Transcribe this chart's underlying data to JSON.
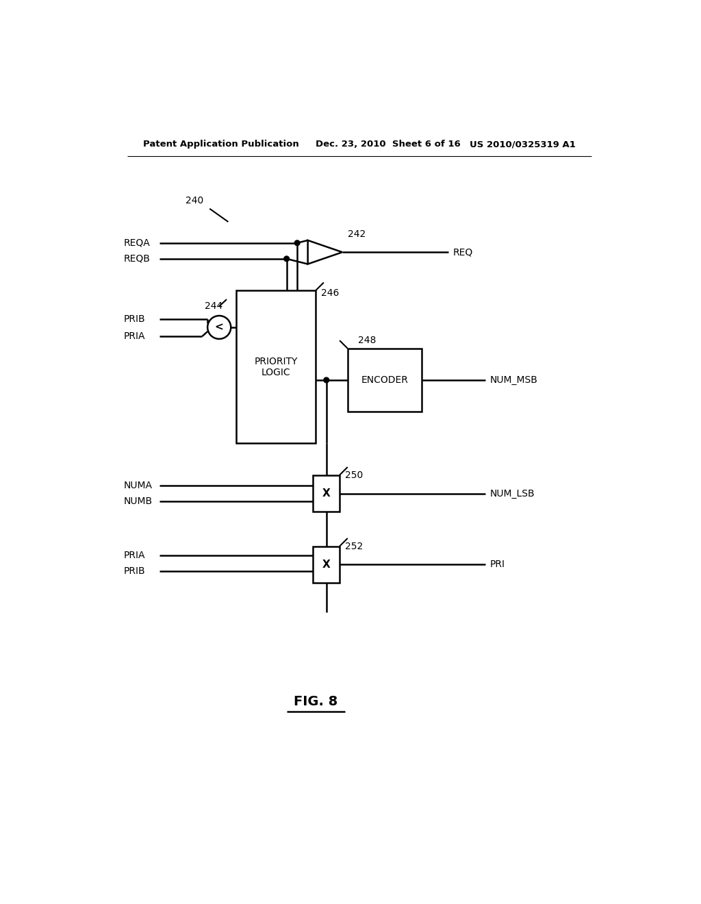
{
  "bg_color": "#ffffff",
  "text_color": "#000000",
  "header_left": "Patent Application Publication",
  "header_mid": "Dec. 23, 2010  Sheet 6 of 16",
  "header_right": "US 2010/0325319 A1",
  "fig_label": "FIG. 8"
}
